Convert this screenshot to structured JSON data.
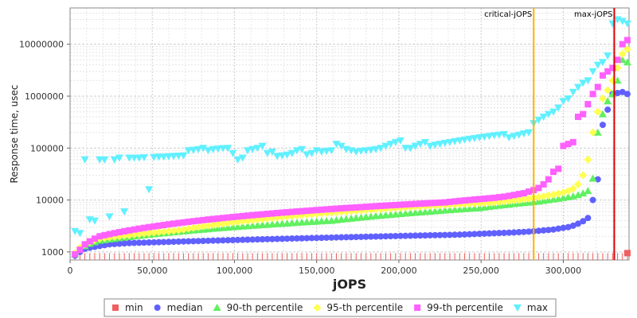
{
  "chart_data": {
    "type": "scatter",
    "xlabel": "jOPS",
    "ylabel": "Response time, usec",
    "xlim": [
      0,
      340000
    ],
    "ylim": [
      700,
      50000000
    ],
    "yscale": "log",
    "grid": true,
    "legend_position": "bottom",
    "x_ticks": [
      {
        "v": 0,
        "label": "0"
      },
      {
        "v": 50000,
        "label": "50,000"
      },
      {
        "v": 100000,
        "label": "100,000"
      },
      {
        "v": 150000,
        "label": "150,000"
      },
      {
        "v": 200000,
        "label": "200,000"
      },
      {
        "v": 250000,
        "label": "250,000"
      },
      {
        "v": 300000,
        "label": "300,000"
      }
    ],
    "y_ticks": [
      {
        "v": 1000,
        "label": "1000"
      },
      {
        "v": 10000,
        "label": "10000"
      },
      {
        "v": 100000,
        "label": "100000"
      },
      {
        "v": 1000000,
        "label": "1000000"
      },
      {
        "v": 10000000,
        "label": "10000000"
      }
    ],
    "annotations": [
      {
        "label": "critical-jOPS",
        "x": 282000,
        "color": "#ffb000"
      },
      {
        "label": "max-jOPS",
        "x": 331000,
        "color": "#dd0000"
      }
    ],
    "x": [
      3000,
      6000,
      9000,
      12000,
      15000,
      18000,
      21000,
      24000,
      27000,
      30000,
      33000,
      36000,
      39000,
      42000,
      45000,
      48000,
      51000,
      54000,
      57000,
      60000,
      63000,
      66000,
      69000,
      72000,
      75000,
      78000,
      81000,
      84000,
      87000,
      90000,
      93000,
      96000,
      99000,
      102000,
      105000,
      108000,
      111000,
      114000,
      117000,
      120000,
      123000,
      126000,
      129000,
      132000,
      135000,
      138000,
      141000,
      144000,
      147000,
      150000,
      153000,
      156000,
      159000,
      162000,
      165000,
      168000,
      171000,
      174000,
      177000,
      180000,
      183000,
      186000,
      189000,
      192000,
      195000,
      198000,
      201000,
      204000,
      207000,
      210000,
      213000,
      216000,
      219000,
      222000,
      225000,
      228000,
      231000,
      234000,
      237000,
      240000,
      243000,
      246000,
      249000,
      252000,
      255000,
      258000,
      261000,
      264000,
      267000,
      270000,
      273000,
      276000,
      279000,
      282000,
      285000,
      288000,
      291000,
      294000,
      297000,
      300000,
      303000,
      306000,
      309000,
      312000,
      315000,
      318000,
      321000,
      324000,
      327000,
      330000,
      333000,
      336000,
      339000
    ],
    "series": [
      {
        "name": "min",
        "color": "#f06060",
        "marker": "square",
        "values": [
          950,
          950,
          950,
          950,
          950,
          950,
          950,
          950,
          950,
          950,
          950,
          950,
          950,
          950,
          950,
          950,
          950,
          950,
          950,
          950,
          950,
          950,
          950,
          950,
          950,
          950,
          950,
          950,
          950,
          950,
          950,
          950,
          950,
          950,
          950,
          950,
          950,
          950,
          950,
          950,
          950,
          950,
          950,
          950,
          950,
          950,
          950,
          950,
          950,
          950,
          950,
          950,
          950,
          950,
          950,
          950,
          950,
          950,
          950,
          950,
          950,
          950,
          950,
          950,
          950,
          950,
          950,
          950,
          950,
          950,
          950,
          950,
          950,
          950,
          950,
          950,
          950,
          950,
          950,
          950,
          950,
          950,
          950,
          950,
          950,
          950,
          950,
          950,
          950,
          950,
          950,
          950,
          950,
          950,
          950,
          950,
          950,
          950,
          950,
          950,
          950,
          950,
          950,
          950,
          950,
          950,
          950,
          950,
          950,
          950,
          950,
          950,
          950
        ]
      },
      {
        "name": "median",
        "color": "#6060ff",
        "marker": "circle",
        "values": [
          850,
          1000,
          1150,
          1200,
          1250,
          1300,
          1350,
          1400,
          1420,
          1440,
          1460,
          1480,
          1490,
          1500,
          1510,
          1520,
          1530,
          1540,
          1550,
          1560,
          1570,
          1580,
          1590,
          1600,
          1610,
          1620,
          1630,
          1640,
          1650,
          1660,
          1670,
          1680,
          1690,
          1700,
          1710,
          1720,
          1730,
          1740,
          1750,
          1760,
          1770,
          1780,
          1790,
          1800,
          1810,
          1820,
          1830,
          1840,
          1850,
          1860,
          1870,
          1880,
          1890,
          1900,
          1910,
          1920,
          1930,
          1940,
          1950,
          1960,
          1970,
          1980,
          1990,
          2000,
          2010,
          2020,
          2030,
          2040,
          2050,
          2060,
          2070,
          2080,
          2090,
          2100,
          2110,
          2120,
          2130,
          2140,
          2150,
          2170,
          2190,
          2210,
          2230,
          2250,
          2270,
          2290,
          2310,
          2330,
          2350,
          2370,
          2400,
          2430,
          2460,
          2500,
          2550,
          2600,
          2650,
          2700,
          2800,
          2900,
          3000,
          3200,
          3500,
          3900,
          4500,
          10000,
          25000,
          280000,
          550000,
          1100000,
          1150000,
          1200000,
          1100000
        ]
      },
      {
        "name": "90-th percentile",
        "color": "#60f060",
        "marker": "triangle",
        "values": [
          900,
          1100,
          1300,
          1450,
          1550,
          1650,
          1700,
          1750,
          1800,
          1850,
          1900,
          1950,
          2000,
          2050,
          2100,
          2150,
          2200,
          2250,
          2300,
          2350,
          2400,
          2450,
          2500,
          2550,
          2600,
          2650,
          2700,
          2750,
          2800,
          2850,
          2900,
          2950,
          3000,
          3050,
          3100,
          3150,
          3200,
          3250,
          3300,
          3350,
          3400,
          3450,
          3500,
          3550,
          3600,
          3650,
          3700,
          3750,
          3800,
          3850,
          3900,
          3950,
          4000,
          4100,
          4200,
          4300,
          4400,
          4500,
          4600,
          4700,
          4800,
          4900,
          5000,
          5100,
          5200,
          5300,
          5400,
          5500,
          5600,
          5700,
          5800,
          5900,
          6000,
          6100,
          6200,
          6300,
          6400,
          6500,
          6600,
          6700,
          6800,
          6900,
          7000,
          7200,
          7400,
          7600,
          7800,
          8000,
          8200,
          8400,
          8600,
          8800,
          9000,
          9200,
          9400,
          9700,
          10000,
          10300,
          10600,
          11000,
          11400,
          11800,
          12500,
          13500,
          15000,
          26000,
          200000,
          450000,
          800000,
          1100000,
          2000000,
          5000000,
          4500000
        ]
      },
      {
        "name": "95-th percentile",
        "color": "#ffff50",
        "marker": "diamond",
        "values": [
          950,
          1200,
          1400,
          1550,
          1700,
          1800,
          1850,
          1900,
          1950,
          2000,
          2050,
          2100,
          2150,
          2200,
          2250,
          2300,
          2350,
          2400,
          2450,
          2500,
          2550,
          2600,
          2700,
          2800,
          2900,
          3000,
          3100,
          3200,
          3300,
          3400,
          3500,
          3600,
          3700,
          3800,
          3900,
          4000,
          4100,
          4200,
          4300,
          4400,
          4500,
          4600,
          4700,
          4800,
          4900,
          5000,
          5100,
          5200,
          5300,
          5400,
          5500,
          5600,
          5700,
          5800,
          5900,
          6000,
          6100,
          6200,
          6300,
          6400,
          6500,
          6600,
          6700,
          6800,
          6900,
          7000,
          7100,
          7200,
          7300,
          7400,
          7500,
          7600,
          7700,
          7800,
          7900,
          8000,
          8100,
          8200,
          8300,
          8400,
          8500,
          8600,
          8700,
          8800,
          8900,
          9000,
          9200,
          9400,
          9600,
          9800,
          10000,
          10300,
          10600,
          11000,
          11400,
          11800,
          12200,
          12700,
          13300,
          14000,
          15000,
          16500,
          20000,
          30000,
          60000,
          200000,
          500000,
          900000,
          1300000,
          2000000,
          3500000,
          6500000,
          8000000
        ]
      },
      {
        "name": "99-th percentile",
        "color": "#ff60ff",
        "marker": "square",
        "values": [
          900,
          1100,
          1400,
          1600,
          1800,
          2000,
          2100,
          2200,
          2300,
          2400,
          2500,
          2600,
          2700,
          2800,
          2900,
          3000,
          3100,
          3200,
          3300,
          3400,
          3500,
          3600,
          3700,
          3800,
          3900,
          4000,
          4100,
          4200,
          4300,
          4400,
          4500,
          4600,
          4700,
          4800,
          4900,
          5000,
          5100,
          5200,
          5300,
          5400,
          5500,
          5600,
          5700,
          5800,
          5900,
          6000,
          6100,
          6200,
          6300,
          6400,
          6500,
          6600,
          6700,
          6800,
          6900,
          7000,
          7100,
          7200,
          7300,
          7400,
          7500,
          7600,
          7700,
          7800,
          7900,
          8000,
          8100,
          8200,
          8300,
          8400,
          8500,
          8600,
          8700,
          8800,
          8900,
          9000,
          9200,
          9400,
          9600,
          9800,
          10000,
          10200,
          10400,
          10600,
          10800,
          11000,
          11300,
          11600,
          12000,
          12500,
          13000,
          13500,
          14500,
          15500,
          17000,
          20000,
          25000,
          35000,
          40000,
          110000,
          120000,
          130000,
          400000,
          450000,
          700000,
          1100000,
          1500000,
          2500000,
          3000000,
          3500000,
          5000000,
          10000000,
          12000000
        ]
      },
      {
        "name": "max",
        "color": "#60f0ff",
        "marker": "triangle-down",
        "values": [
          2500,
          2300,
          60000,
          4200,
          4000,
          60000,
          60000,
          4800,
          60000,
          65000,
          6000,
          65000,
          65000,
          65000,
          66000,
          16000,
          67000,
          68000,
          68000,
          69000,
          70000,
          71000,
          72000,
          90000,
          92000,
          95000,
          100000,
          90000,
          95000,
          97000,
          99000,
          100000,
          80000,
          60000,
          65000,
          90000,
          95000,
          100000,
          110000,
          80000,
          85000,
          70000,
          72000,
          74000,
          80000,
          90000,
          95000,
          75000,
          80000,
          90000,
          85000,
          88000,
          90000,
          120000,
          110000,
          95000,
          90000,
          85000,
          88000,
          90000,
          92000,
          95000,
          100000,
          110000,
          120000,
          130000,
          140000,
          100000,
          100000,
          110000,
          120000,
          130000,
          110000,
          115000,
          120000,
          125000,
          130000,
          135000,
          140000,
          145000,
          150000,
          155000,
          160000,
          165000,
          170000,
          175000,
          180000,
          185000,
          160000,
          170000,
          180000,
          190000,
          200000,
          300000,
          350000,
          400000,
          450000,
          500000,
          600000,
          800000,
          900000,
          1200000,
          1500000,
          1800000,
          2000000,
          3000000,
          4000000,
          4500000,
          6000000,
          25000000,
          30000000,
          28000000,
          25000000
        ]
      }
    ]
  }
}
